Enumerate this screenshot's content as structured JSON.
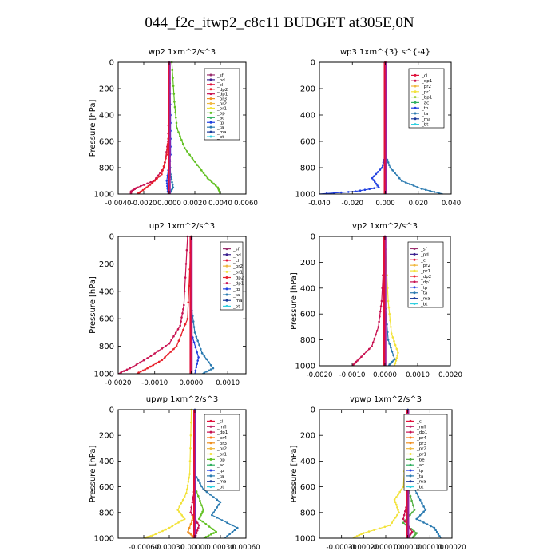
{
  "title": "044_f2c_itwp2_c8c11  BUDGET at305E,0N",
  "colors": {
    "sf": "#9a2f6e",
    "pd": "#3a1f8f",
    "cl": "#e0103a",
    "dp2": "#e8202a",
    "dp1": "#c81050",
    "pr3": "#f09020",
    "pr2": "#f0b840",
    "pr1": "#f2e23a",
    "bp": "#60c020",
    "ac": "#30b060",
    "tp": "#2040e0",
    "ta": "#2a7ab0",
    "ma": "#1a3a9a",
    "bt": "#30d0e0",
    "mfl": "#c02060",
    "pr4": "#ff7a10",
    "bp1": "#a0d040",
    "be": "#50b040",
    "trend": "#a020a0"
  },
  "chart_data": [
    {
      "type": "line",
      "title": "wp2   1xm^2/s^3",
      "ylabel": "Pressure [hPa]",
      "ylim": [
        1000,
        0
      ],
      "xlim": [
        -0.004,
        0.006
      ],
      "xticks": [
        "-0.0040",
        "-0.0020",
        "0.0000",
        "0.0020",
        "0.0040",
        "0.0060"
      ],
      "yticks": [
        "0",
        "200",
        "400",
        "600",
        "800",
        "1000"
      ],
      "legend": [
        "_sf",
        "_pd",
        "_cl",
        "_dp2",
        "_dp1",
        "_pr3",
        "_pr2",
        "_pr1",
        "_bp",
        "_ac",
        "_tp",
        "_ta",
        "_ma",
        "_bt"
      ],
      "series": [
        {
          "name": "_dp1",
          "color": "#c81050",
          "points": [
            [
              0.0,
              0
            ],
            [
              0.0,
              300
            ],
            [
              -0.0001,
              600
            ],
            [
              -0.0004,
              800
            ],
            [
              -0.0012,
              900
            ],
            [
              -0.0025,
              950
            ],
            [
              -0.003,
              980
            ],
            [
              -0.003,
              1000
            ]
          ]
        },
        {
          "name": "_dp2",
          "color": "#e8202a",
          "points": [
            [
              0.0,
              0
            ],
            [
              0.0,
              500
            ],
            [
              -0.0002,
              700
            ],
            [
              -0.0006,
              850
            ],
            [
              -0.0015,
              930
            ],
            [
              -0.0022,
              980
            ],
            [
              -0.0025,
              1000
            ]
          ]
        },
        {
          "name": "_bp",
          "color": "#60c020",
          "points": [
            [
              0.0002,
              0
            ],
            [
              0.0004,
              300
            ],
            [
              0.0006,
              500
            ],
            [
              0.0012,
              650
            ],
            [
              0.0022,
              780
            ],
            [
              0.003,
              880
            ],
            [
              0.0038,
              950
            ],
            [
              0.004,
              1000
            ]
          ]
        },
        {
          "name": "_ta",
          "color": "#2a7ab0",
          "points": [
            [
              0.0,
              0
            ],
            [
              0.0,
              600
            ],
            [
              0.0001,
              850
            ],
            [
              0.0003,
              950
            ],
            [
              0.0,
              1000
            ]
          ]
        },
        {
          "name": "_tp",
          "color": "#2040e0",
          "points": [
            [
              0.0,
              0
            ],
            [
              0.0001,
              400
            ],
            [
              0.0001,
              700
            ],
            [
              -0.0002,
              900
            ],
            [
              -0.0001,
              1000
            ]
          ]
        },
        {
          "name": "_bt",
          "color": "#30d0e0",
          "points": [
            [
              0.0,
              0
            ],
            [
              0.0,
              1000
            ]
          ]
        },
        {
          "name": "_pd",
          "color": "#3a1f8f",
          "points": [
            [
              0.0,
              0
            ],
            [
              0.0,
              1000
            ]
          ]
        },
        {
          "name": "_sf",
          "color": "#9a2f6e",
          "points": [
            [
              0.0,
              0
            ],
            [
              0.0,
              1000
            ]
          ]
        }
      ]
    },
    {
      "type": "line",
      "title": "wp3   1xm^{3} s^{-4}",
      "ylabel": "",
      "ylim": [
        1000,
        0
      ],
      "xlim": [
        -0.04,
        0.04
      ],
      "xticks": [
        "-0.040",
        "-0.020",
        "0.000",
        "0.020",
        "0.040"
      ],
      "yticks": [
        "0",
        "200",
        "400",
        "600",
        "800",
        "1000"
      ],
      "legend": [
        "_cl",
        "_dp1",
        "_pr2",
        "_pr1",
        "_bp1",
        "_ac",
        "_tp",
        "_ta",
        "_ma",
        "_bt"
      ],
      "series": [
        {
          "name": "_tp",
          "color": "#2040e0",
          "points": [
            [
              0.0,
              0
            ],
            [
              0.0,
              700
            ],
            [
              -0.002,
              800
            ],
            [
              -0.008,
              880
            ],
            [
              -0.004,
              950
            ],
            [
              -0.018,
              980
            ],
            [
              -0.04,
              1000
            ]
          ]
        },
        {
          "name": "_ta",
          "color": "#2a7ab0",
          "points": [
            [
              0.0,
              0
            ],
            [
              0.0,
              700
            ],
            [
              0.003,
              800
            ],
            [
              0.01,
              900
            ],
            [
              0.022,
              960
            ],
            [
              0.035,
              1000
            ]
          ]
        },
        {
          "name": "_ac",
          "color": "#30b060",
          "points": [
            [
              0.0,
              0
            ],
            [
              0.0,
              1000
            ]
          ]
        },
        {
          "name": "_pr1",
          "color": "#f2e23a",
          "points": [
            [
              0.0,
              0
            ],
            [
              0.0,
              1000
            ]
          ]
        },
        {
          "name": "_cl",
          "color": "#e0103a",
          "points": [
            [
              0.0,
              0
            ],
            [
              0.0,
              1000
            ]
          ]
        },
        {
          "name": "_dp1",
          "color": "#c81050",
          "points": [
            [
              0.0,
              0
            ],
            [
              0.0,
              1000
            ]
          ]
        }
      ]
    },
    {
      "type": "line",
      "title": "up2   1xm^2/s^3",
      "ylabel": "Pressure [hPa]",
      "ylim": [
        1000,
        0
      ],
      "xlim": [
        -0.002,
        0.0015
      ],
      "xticks": [
        "-0.0020",
        "-0.0010",
        "0.0000",
        "0.0010"
      ],
      "yticks": [
        "0",
        "200",
        "400",
        "600",
        "800",
        "1000"
      ],
      "legend": [
        "_sf",
        "_pd",
        "_cl",
        "_pr2",
        "_pr1",
        "_dp2",
        "_dp1",
        "_tp",
        "_ta",
        "_ma",
        "_bt"
      ],
      "series": [
        {
          "name": "_dp1",
          "color": "#c81050",
          "points": [
            [
              -0.0001,
              0
            ],
            [
              -0.0002,
              500
            ],
            [
              -0.0003,
              650
            ],
            [
              -0.0006,
              780
            ],
            [
              -0.0011,
              870
            ],
            [
              -0.0016,
              950
            ],
            [
              -0.002,
              1000
            ]
          ]
        },
        {
          "name": "_dp2",
          "color": "#e8202a",
          "points": [
            [
              0.0,
              0
            ],
            [
              -0.0001,
              600
            ],
            [
              -0.0004,
              800
            ],
            [
              -0.0008,
              900
            ],
            [
              -0.0012,
              960
            ],
            [
              -0.0015,
              1000
            ]
          ]
        },
        {
          "name": "_ta",
          "color": "#2a7ab0",
          "points": [
            [
              0.0,
              0
            ],
            [
              0.0,
              500
            ],
            [
              0.0001,
              700
            ],
            [
              0.0003,
              850
            ],
            [
              0.0006,
              960
            ],
            [
              0.0003,
              1000
            ]
          ]
        },
        {
          "name": "_tp",
          "color": "#2040e0",
          "points": [
            [
              0.0,
              0
            ],
            [
              0.0,
              700
            ],
            [
              0.0002,
              880
            ],
            [
              0.0001,
              1000
            ]
          ]
        },
        {
          "name": "_pr1",
          "color": "#f2e23a",
          "points": [
            [
              0.0,
              0
            ],
            [
              0.0,
              1000
            ]
          ]
        },
        {
          "name": "_cl",
          "color": "#e0103a",
          "points": [
            [
              0.0,
              0
            ],
            [
              0.0,
              1000
            ]
          ]
        }
      ]
    },
    {
      "type": "line",
      "title": "vp2   1xm^2/s^3",
      "ylabel": "Pressure [hPa]",
      "ylim": [
        1000,
        0
      ],
      "xlim": [
        -0.002,
        0.002
      ],
      "xticks": [
        "-0.0020",
        "-0.0010",
        "0.0000",
        "0.0010",
        "0.0020"
      ],
      "yticks": [
        "0",
        "200",
        "400",
        "600",
        "800",
        "1000"
      ],
      "legend": [
        "_sf",
        "_pd",
        "_cl",
        "_pr2",
        "_pr1",
        "_dp2",
        "_dp1",
        "_tp",
        "_ta",
        "_ma",
        "_bt"
      ],
      "series": [
        {
          "name": "_dp1",
          "color": "#c81050",
          "points": [
            [
              0.0,
              0
            ],
            [
              -0.0001,
              500
            ],
            [
              -0.0002,
              700
            ],
            [
              -0.0004,
              850
            ],
            [
              -0.0008,
              950
            ],
            [
              -0.001,
              1000
            ]
          ]
        },
        {
          "name": "_pr1",
          "color": "#f2e23a",
          "points": [
            [
              0.0,
              0
            ],
            [
              0.0001,
              500
            ],
            [
              0.0002,
              750
            ],
            [
              0.0004,
              900
            ],
            [
              0.0003,
              1000
            ]
          ]
        },
        {
          "name": "_ta",
          "color": "#2a7ab0",
          "points": [
            [
              0.0,
              0
            ],
            [
              0.0,
              500
            ],
            [
              0.0001,
              800
            ],
            [
              0.0003,
              950
            ],
            [
              0.0001,
              1000
            ]
          ]
        },
        {
          "name": "_tp",
          "color": "#2040e0",
          "points": [
            [
              0.0,
              0
            ],
            [
              0.0,
              1000
            ]
          ]
        },
        {
          "name": "_cl",
          "color": "#e0103a",
          "points": [
            [
              0.0,
              0
            ],
            [
              0.0,
              1000
            ]
          ]
        }
      ]
    },
    {
      "type": "line",
      "title": "upwp   1xm^2/s^3",
      "ylabel": "Pressure [hPa]",
      "ylim": [
        1000,
        0
      ],
      "xlim": [
        -0.0009,
        0.0006
      ],
      "xticks": [
        "-0.00060",
        "-0.00030",
        "0.00000",
        "0.00030",
        "0.00060"
      ],
      "yticks": [
        "0",
        "200",
        "400",
        "600",
        "800",
        "1000"
      ],
      "legend": [
        "_cl",
        "_mfl",
        "_dp1",
        "_pr4",
        "_pr3",
        "_pr2",
        "_pr1",
        "_bp",
        "_ac",
        "_tp",
        "_ta",
        "_ma",
        "_bt"
      ],
      "series": [
        {
          "name": "_pr1",
          "color": "#f2e23a",
          "points": [
            [
              -4e-05,
              0
            ],
            [
              -6e-05,
              500
            ],
            [
              -0.0001,
              650
            ],
            [
              -0.0002,
              780
            ],
            [
              -0.00012,
              850
            ],
            [
              -0.0003,
              920
            ],
            [
              -0.0005,
              980
            ],
            [
              -0.0006,
              1000
            ]
          ]
        },
        {
          "name": "_ta",
          "color": "#2a7ab0",
          "points": [
            [
              0.0,
              0
            ],
            [
              0.0,
              500
            ],
            [
              0.0001,
              620
            ],
            [
              0.0003,
              720
            ],
            [
              0.0002,
              820
            ],
            [
              0.0005,
              920
            ],
            [
              0.00035,
              1000
            ]
          ]
        },
        {
          "name": "_bp",
          "color": "#60c020",
          "points": [
            [
              0.0,
              0
            ],
            [
              0.0,
              600
            ],
            [
              0.0001,
              780
            ],
            [
              5e-05,
              850
            ],
            [
              0.00025,
              950
            ],
            [
              0.0001,
              1000
            ]
          ]
        },
        {
          "name": "_dp1",
          "color": "#c81050",
          "points": [
            [
              0.0,
              0
            ],
            [
              0.0,
              600
            ],
            [
              -5e-05,
              800
            ],
            [
              5e-05,
              900
            ],
            [
              0.0,
              1000
            ]
          ]
        },
        {
          "name": "_pr3",
          "color": "#f09020",
          "points": [
            [
              0.0,
              0
            ],
            [
              0.0,
              800
            ],
            [
              -8e-05,
              950
            ],
            [
              0.0,
              1000
            ]
          ]
        },
        {
          "name": "_tp",
          "color": "#2040e0",
          "points": [
            [
              0.0,
              0
            ],
            [
              0.0,
              1000
            ]
          ]
        }
      ]
    },
    {
      "type": "line",
      "title": "vpwp   1xm^2/s^3",
      "ylabel": "Pressure [hPa]",
      "ylim": [
        1000,
        0
      ],
      "xlim": [
        -0.0004,
        0.0002
      ],
      "xticks": [
        "-0.00030",
        "-0.00020",
        "-0.00010",
        "0.00000",
        "0.00010",
        "0.00020"
      ],
      "yticks": [
        "0",
        "200",
        "400",
        "600",
        "800",
        "1000"
      ],
      "legend": [
        "_cl",
        "_mfl",
        "_dp1",
        "_pr4",
        "_pr3",
        "_pr2",
        "_pr1",
        "_be",
        "_ac",
        "_tp",
        "_ta",
        "_ma",
        "_bt"
      ],
      "series": [
        {
          "name": "_pr1",
          "color": "#f2e23a",
          "points": [
            [
              0.0,
              0
            ],
            [
              -2e-05,
              600
            ],
            [
              -6e-05,
              700
            ],
            [
              -4e-05,
              800
            ],
            [
              -8e-05,
              900
            ],
            [
              -0.0002,
              960
            ],
            [
              -0.00025,
              1000
            ]
          ]
        },
        {
          "name": "_ta",
          "color": "#2a7ab0",
          "points": [
            [
              0.0,
              0
            ],
            [
              0.0,
              500
            ],
            [
              4e-05,
              650
            ],
            [
              8e-05,
              780
            ],
            [
              4e-05,
              850
            ],
            [
              0.00012,
              920
            ],
            [
              0.00015,
              1000
            ]
          ]
        },
        {
          "name": "_be",
          "color": "#50b040",
          "points": [
            [
              0.0,
              0
            ],
            [
              0.0,
              600
            ],
            [
              3e-05,
              780
            ],
            [
              -2e-05,
              880
            ],
            [
              4e-05,
              960
            ],
            [
              2e-05,
              1000
            ]
          ]
        },
        {
          "name": "_dp1",
          "color": "#c81050",
          "points": [
            [
              0.0,
              0
            ],
            [
              0.0,
              700
            ],
            [
              -2e-05,
              850
            ],
            [
              2e-05,
              950
            ],
            [
              0.0,
              1000
            ]
          ]
        },
        {
          "name": "_tp",
          "color": "#2040e0",
          "points": [
            [
              0.0,
              0
            ],
            [
              0.0,
              1000
            ]
          ]
        }
      ]
    }
  ]
}
